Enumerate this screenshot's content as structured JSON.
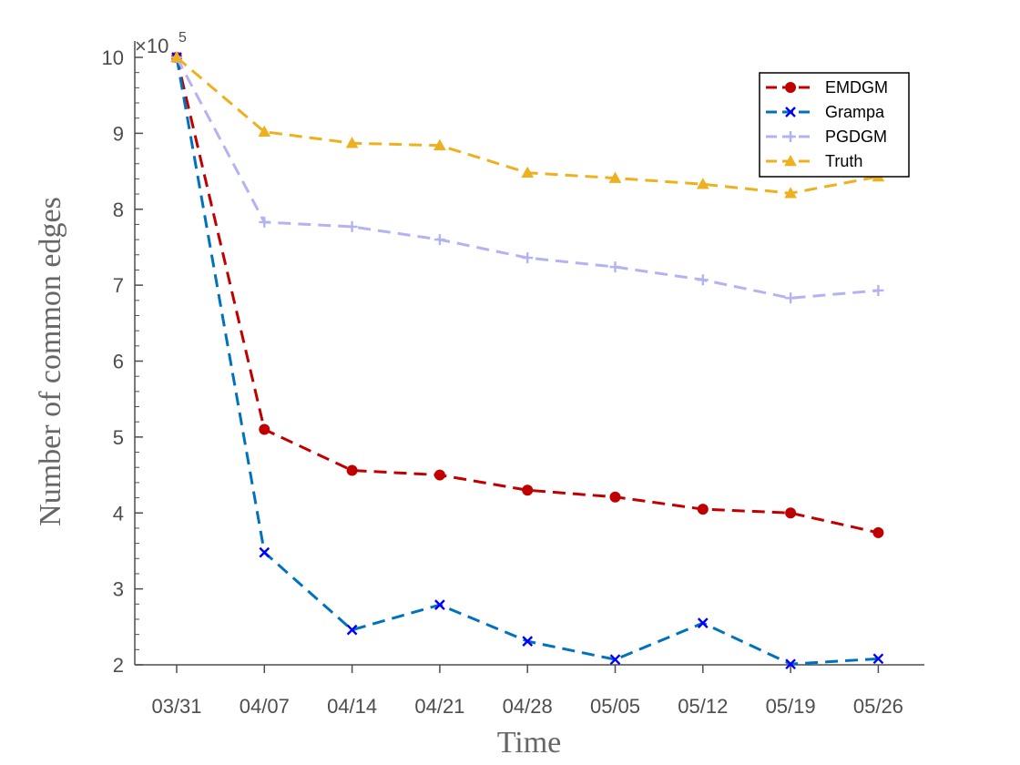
{
  "chart_data": {
    "type": "line",
    "xlabel": "Time",
    "ylabel": "Number of common edges",
    "categories": [
      "03/31",
      "04/07",
      "04/14",
      "04/21",
      "04/28",
      "05/05",
      "05/12",
      "05/19",
      "05/26"
    ],
    "y_display_scale_label": "×10",
    "y_display_scale_exponent": "5",
    "y_scale_factor": 100000,
    "ylim": [
      200000,
      1000000
    ],
    "y_ticks": [
      200000,
      300000,
      400000,
      500000,
      600000,
      700000,
      800000,
      900000,
      1000000
    ],
    "y_tick_labels": [
      "2",
      "3",
      "4",
      "5",
      "6",
      "7",
      "8",
      "9",
      "10"
    ],
    "grid": false,
    "legend_position": "top-right",
    "series": [
      {
        "name": "EMDGM",
        "color": "#c00000",
        "marker": "circle",
        "values": [
          1000000,
          510000,
          456000,
          450000,
          430000,
          421000,
          405000,
          400000,
          374000
        ]
      },
      {
        "name": "Grampa",
        "color": "#0072bd",
        "marker_color": "#0000ff",
        "marker": "x",
        "values": [
          1000000,
          348000,
          246000,
          279000,
          231000,
          207000,
          255000,
          201000,
          208000
        ]
      },
      {
        "name": "PGDGM",
        "color": "#b3b3f2",
        "marker": "plus",
        "values": [
          1000000,
          783000,
          777000,
          760000,
          736000,
          724000,
          707000,
          683000,
          693000
        ]
      },
      {
        "name": "Truth",
        "color": "#edb120",
        "marker": "triangle",
        "values": [
          1000000,
          902000,
          887000,
          884000,
          848000,
          841000,
          833000,
          821000,
          843000
        ]
      }
    ]
  }
}
